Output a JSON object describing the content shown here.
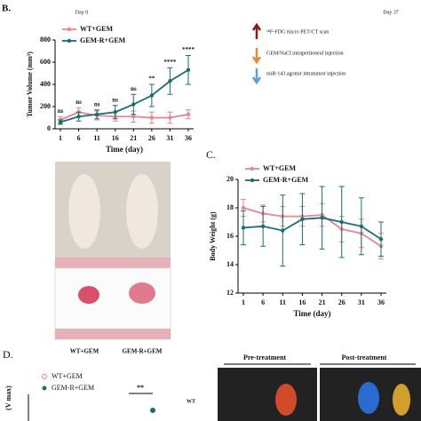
{
  "chart_data": [
    {
      "type": "line",
      "panel": "B.",
      "xlabel": "Time (day)",
      "ylabel": "Tumor Volume (mm³)",
      "categories": [
        "1",
        "6",
        "11",
        "16",
        "21",
        "26",
        "31",
        "36"
      ],
      "ylim": [
        0,
        800
      ],
      "yticks": [
        0,
        200,
        400,
        600,
        800
      ],
      "legend": "upper left",
      "series": [
        {
          "name": "WT+GEM",
          "color": "#e8848c",
          "values": [
            80,
            150,
            120,
            110,
            110,
            100,
            100,
            130
          ],
          "errors": [
            30,
            40,
            40,
            40,
            50,
            50,
            50,
            40
          ]
        },
        {
          "name": "GEM-R+GEM",
          "color": "#1a6e73",
          "values": [
            60,
            110,
            130,
            150,
            220,
            300,
            430,
            530
          ],
          "errors": [
            20,
            40,
            40,
            60,
            90,
            100,
            120,
            130
          ]
        }
      ],
      "annotations": [
        "ns",
        "ns",
        "ns",
        "ns",
        "ns",
        "**",
        "****",
        "****"
      ]
    },
    {
      "type": "line",
      "panel": "C.",
      "xlabel": "Time (day)",
      "ylabel": "Body  Weight (g)",
      "categories": [
        "1",
        "6",
        "11",
        "16",
        "21",
        "26",
        "31",
        "36"
      ],
      "ylim": [
        12,
        20
      ],
      "yticks": [
        12,
        14,
        16,
        18,
        20
      ],
      "legend": "upper left",
      "series": [
        {
          "name": "WT+GEM",
          "color": "#e8848c",
          "values": [
            18.0,
            17.6,
            17.4,
            17.4,
            17.5,
            16.5,
            16.2,
            15.3
          ],
          "errors": [
            0.6,
            0.6,
            0.7,
            0.7,
            0.8,
            0.9,
            1.0,
            0.9
          ]
        },
        {
          "name": "GEM-R+GEM",
          "color": "#1a6e73",
          "values": [
            16.6,
            16.7,
            16.4,
            17.2,
            17.3,
            17.0,
            16.7,
            15.8
          ],
          "errors": [
            1.2,
            1.4,
            2.5,
            1.8,
            2.2,
            2.5,
            2.0,
            1.2
          ]
        }
      ]
    }
  ],
  "timeline": {
    "start": "Day 0",
    "end": "Day 37",
    "legend": [
      "¹⁸F-FDG micro PET/CT scan",
      "GEM/NaCl intraperitoneal injection",
      "miR-143 agomir intratumor injection"
    ]
  },
  "photos": {
    "labels": [
      "WT+GEM",
      "GEM-R+GEM"
    ]
  },
  "panel_d": {
    "panel": "D.",
    "legend": [
      "WT+GEM",
      "GEM-R+GEM"
    ],
    "significance": "**",
    "ylabel": "(V max)",
    "row_label": "WT",
    "headers": [
      "Pre-treatment",
      "Post-treatment"
    ]
  }
}
